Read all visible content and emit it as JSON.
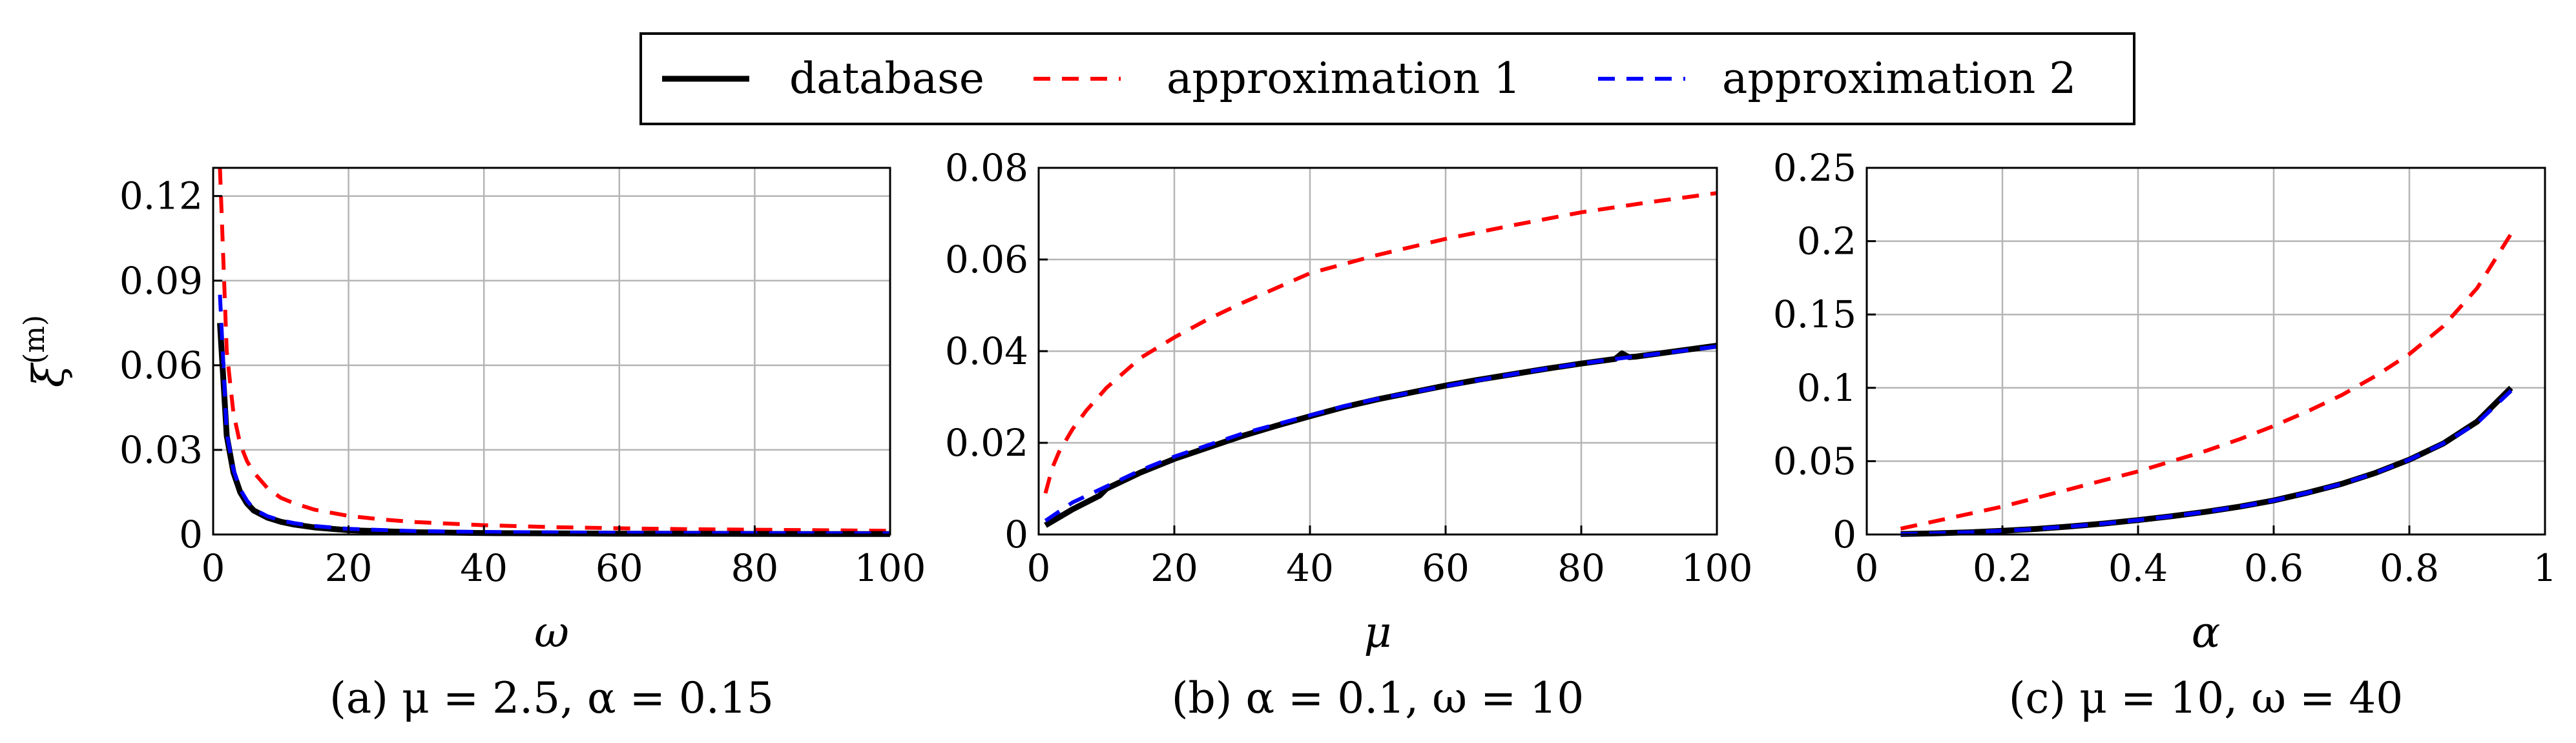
{
  "legend": {
    "items": [
      {
        "label": "database",
        "color": "#000000",
        "style": "solid"
      },
      {
        "label": "approximation 1",
        "color": "#ff0000",
        "style": "dashed"
      },
      {
        "label": "approximation 2",
        "color": "#0000ff",
        "style": "dashed"
      }
    ]
  },
  "chart_data": [
    {
      "type": "line",
      "caption": "(a) μ = 2.5, α = 0.15",
      "xlabel": "ω",
      "ylabel": "ξ(m)",
      "xlim": [
        0,
        100
      ],
      "ylim": [
        0,
        0.13
      ],
      "xticks": [
        0,
        20,
        40,
        60,
        80,
        100
      ],
      "xtick_labels": [
        "0",
        "20",
        "40",
        "60",
        "80",
        "100"
      ],
      "yticks": [
        0,
        0.03,
        0.06,
        0.09,
        0.12
      ],
      "ytick_labels": [
        "0",
        "0.03",
        "0.06",
        "0.09",
        "0.12"
      ],
      "grid": true,
      "series": [
        {
          "name": "database",
          "x": [
            1,
            2,
            3,
            4,
            5,
            6,
            8,
            10,
            12,
            15,
            20,
            30,
            40,
            60,
            80,
            100
          ],
          "values": [
            0.075,
            0.035,
            0.022,
            0.015,
            0.011,
            0.0085,
            0.006,
            0.0045,
            0.0035,
            0.0025,
            0.0015,
            0.0008,
            0.0005,
            0.0003,
            0.0002,
            0.00015
          ]
        },
        {
          "name": "approximation 1",
          "x": [
            1,
            2,
            3,
            4,
            5,
            6,
            8,
            10,
            12,
            15,
            20,
            25,
            30,
            40,
            50,
            60,
            70,
            80,
            90,
            100
          ],
          "values": [
            0.13,
            0.065,
            0.043,
            0.032,
            0.026,
            0.022,
            0.0165,
            0.013,
            0.011,
            0.0088,
            0.0066,
            0.0053,
            0.0044,
            0.0033,
            0.0026,
            0.0022,
            0.0019,
            0.0017,
            0.0015,
            0.0013
          ]
        },
        {
          "name": "approximation 2",
          "x": [
            1,
            2,
            3,
            4,
            5,
            6,
            8,
            10,
            12,
            15,
            20,
            30,
            40,
            60,
            80,
            100
          ],
          "values": [
            0.085,
            0.036,
            0.023,
            0.016,
            0.012,
            0.009,
            0.0065,
            0.005,
            0.004,
            0.003,
            0.002,
            0.0012,
            0.0009,
            0.0006,
            0.0005,
            0.0004
          ]
        }
      ]
    },
    {
      "type": "line",
      "caption": "(b) α = 0.1, ω = 10",
      "xlabel": "μ",
      "ylabel": "",
      "xlim": [
        0,
        100
      ],
      "ylim": [
        0,
        0.08
      ],
      "xticks": [
        0,
        20,
        40,
        60,
        80,
        100
      ],
      "xtick_labels": [
        "0",
        "20",
        "40",
        "60",
        "80",
        "100"
      ],
      "yticks": [
        0,
        0.02,
        0.04,
        0.06,
        0.08
      ],
      "ytick_labels": [
        "0",
        "0.02",
        "0.04",
        "0.06",
        "0.08"
      ],
      "grid": true,
      "series": [
        {
          "name": "database",
          "x": [
            1,
            5,
            9,
            10,
            15,
            20,
            25,
            30,
            35,
            40,
            45,
            50,
            55,
            60,
            65,
            70,
            75,
            80,
            85,
            86,
            87,
            88,
            90,
            95,
            100
          ],
          "values": [
            0.002,
            0.0055,
            0.0085,
            0.01,
            0.0135,
            0.0165,
            0.019,
            0.0215,
            0.0237,
            0.0258,
            0.0278,
            0.0295,
            0.031,
            0.0325,
            0.0338,
            0.035,
            0.0362,
            0.0373,
            0.0383,
            0.0395,
            0.0387,
            0.0388,
            0.0392,
            0.0402,
            0.0412
          ]
        },
        {
          "name": "approximation 1",
          "x": [
            1,
            2,
            3,
            5,
            7,
            10,
            15,
            20,
            25,
            30,
            40,
            50,
            60,
            70,
            80,
            90,
            100
          ],
          "values": [
            0.009,
            0.0145,
            0.018,
            0.023,
            0.027,
            0.032,
            0.0385,
            0.043,
            0.047,
            0.0505,
            0.057,
            0.061,
            0.0645,
            0.0675,
            0.0703,
            0.0725,
            0.0745
          ]
        },
        {
          "name": "approximation 2",
          "x": [
            1,
            5,
            10,
            15,
            20,
            25,
            30,
            35,
            40,
            45,
            50,
            55,
            60,
            65,
            70,
            75,
            80,
            85,
            90,
            95,
            100
          ],
          "values": [
            0.003,
            0.007,
            0.0105,
            0.014,
            0.017,
            0.0195,
            0.022,
            0.024,
            0.026,
            0.028,
            0.0296,
            0.031,
            0.0324,
            0.0337,
            0.035,
            0.0362,
            0.0373,
            0.0383,
            0.0392,
            0.0401,
            0.041
          ]
        }
      ]
    },
    {
      "type": "line",
      "caption": "(c) μ = 10, ω = 40",
      "xlabel": "α",
      "ylabel": "",
      "xlim": [
        0,
        1
      ],
      "ylim": [
        0,
        0.25
      ],
      "xticks": [
        0,
        0.2,
        0.4,
        0.6,
        0.8,
        1
      ],
      "xtick_labels": [
        "0",
        "0.2",
        "0.4",
        "0.6",
        "0.8",
        "1"
      ],
      "yticks": [
        0,
        0.05,
        0.1,
        0.15,
        0.2,
        0.25
      ],
      "ytick_labels": [
        "0",
        "0.05",
        "0.1",
        "0.15",
        "0.2",
        "0.25"
      ],
      "grid": true,
      "series": [
        {
          "name": "database",
          "x": [
            0.05,
            0.1,
            0.15,
            0.2,
            0.25,
            0.3,
            0.35,
            0.4,
            0.45,
            0.5,
            0.55,
            0.6,
            0.65,
            0.7,
            0.75,
            0.8,
            0.85,
            0.9,
            0.95
          ],
          "values": [
            0.0003,
            0.0008,
            0.0015,
            0.0025,
            0.0038,
            0.0055,
            0.0075,
            0.0098,
            0.0125,
            0.0155,
            0.019,
            0.0232,
            0.0285,
            0.0345,
            0.042,
            0.051,
            0.062,
            0.077,
            0.1
          ]
        },
        {
          "name": "approximation 1",
          "x": [
            0.05,
            0.1,
            0.15,
            0.2,
            0.25,
            0.3,
            0.35,
            0.4,
            0.45,
            0.5,
            0.55,
            0.6,
            0.65,
            0.7,
            0.75,
            0.8,
            0.85,
            0.9,
            0.95
          ],
          "values": [
            0.004,
            0.009,
            0.014,
            0.019,
            0.025,
            0.031,
            0.037,
            0.043,
            0.05,
            0.057,
            0.065,
            0.074,
            0.084,
            0.095,
            0.108,
            0.123,
            0.142,
            0.168,
            0.205
          ]
        },
        {
          "name": "approximation 2",
          "x": [
            0.05,
            0.1,
            0.15,
            0.2,
            0.25,
            0.3,
            0.35,
            0.4,
            0.45,
            0.5,
            0.55,
            0.6,
            0.65,
            0.7,
            0.75,
            0.8,
            0.85,
            0.9,
            0.95
          ],
          "values": [
            0.0003,
            0.0008,
            0.0015,
            0.0025,
            0.0038,
            0.0055,
            0.0075,
            0.0098,
            0.0125,
            0.0155,
            0.019,
            0.0232,
            0.0285,
            0.0345,
            0.042,
            0.051,
            0.062,
            0.076,
            0.098
          ]
        }
      ]
    }
  ]
}
